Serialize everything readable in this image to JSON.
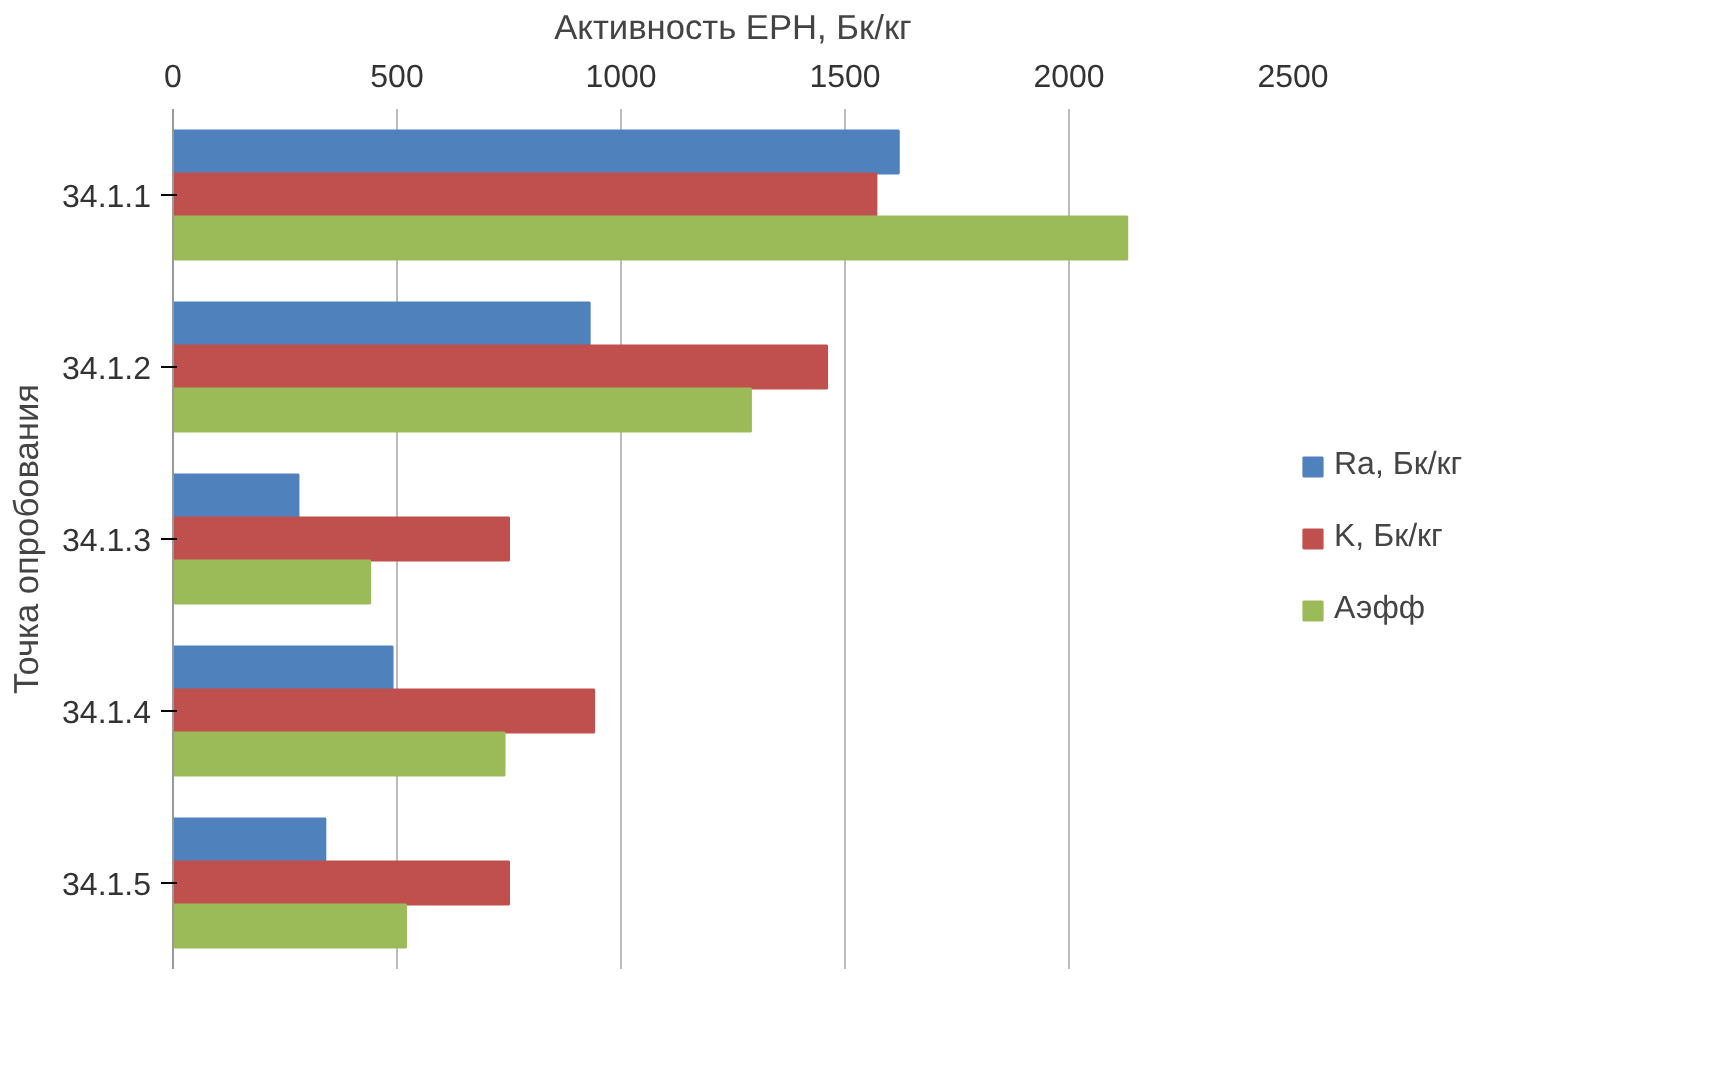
{
  "chart_data": {
    "type": "bar",
    "orientation": "horizontal",
    "xlabel": "Активность ЕРН, Бк/кг",
    "ylabel": "Точка опробования",
    "categories": [
      "34.1.1",
      "34.1.2",
      "34.1.3",
      "34.1.4",
      "34.1.5"
    ],
    "series": [
      {
        "name": "Ra, Бк/кг",
        "color": "#4f81bd",
        "values": [
          1620,
          930,
          280,
          490,
          340
        ]
      },
      {
        "name": "K, Бк/кг",
        "color": "#c0504d",
        "values": [
          1570,
          1460,
          750,
          940,
          750
        ]
      },
      {
        "name": "Аэфф",
        "color": "#9bbb59",
        "values": [
          2130,
          1290,
          440,
          740,
          520
        ]
      }
    ],
    "xlim": [
      0,
      2500
    ],
    "xticks": [
      0,
      500,
      1000,
      1500,
      2000,
      2500
    ],
    "grid": "x",
    "legend": "right"
  }
}
